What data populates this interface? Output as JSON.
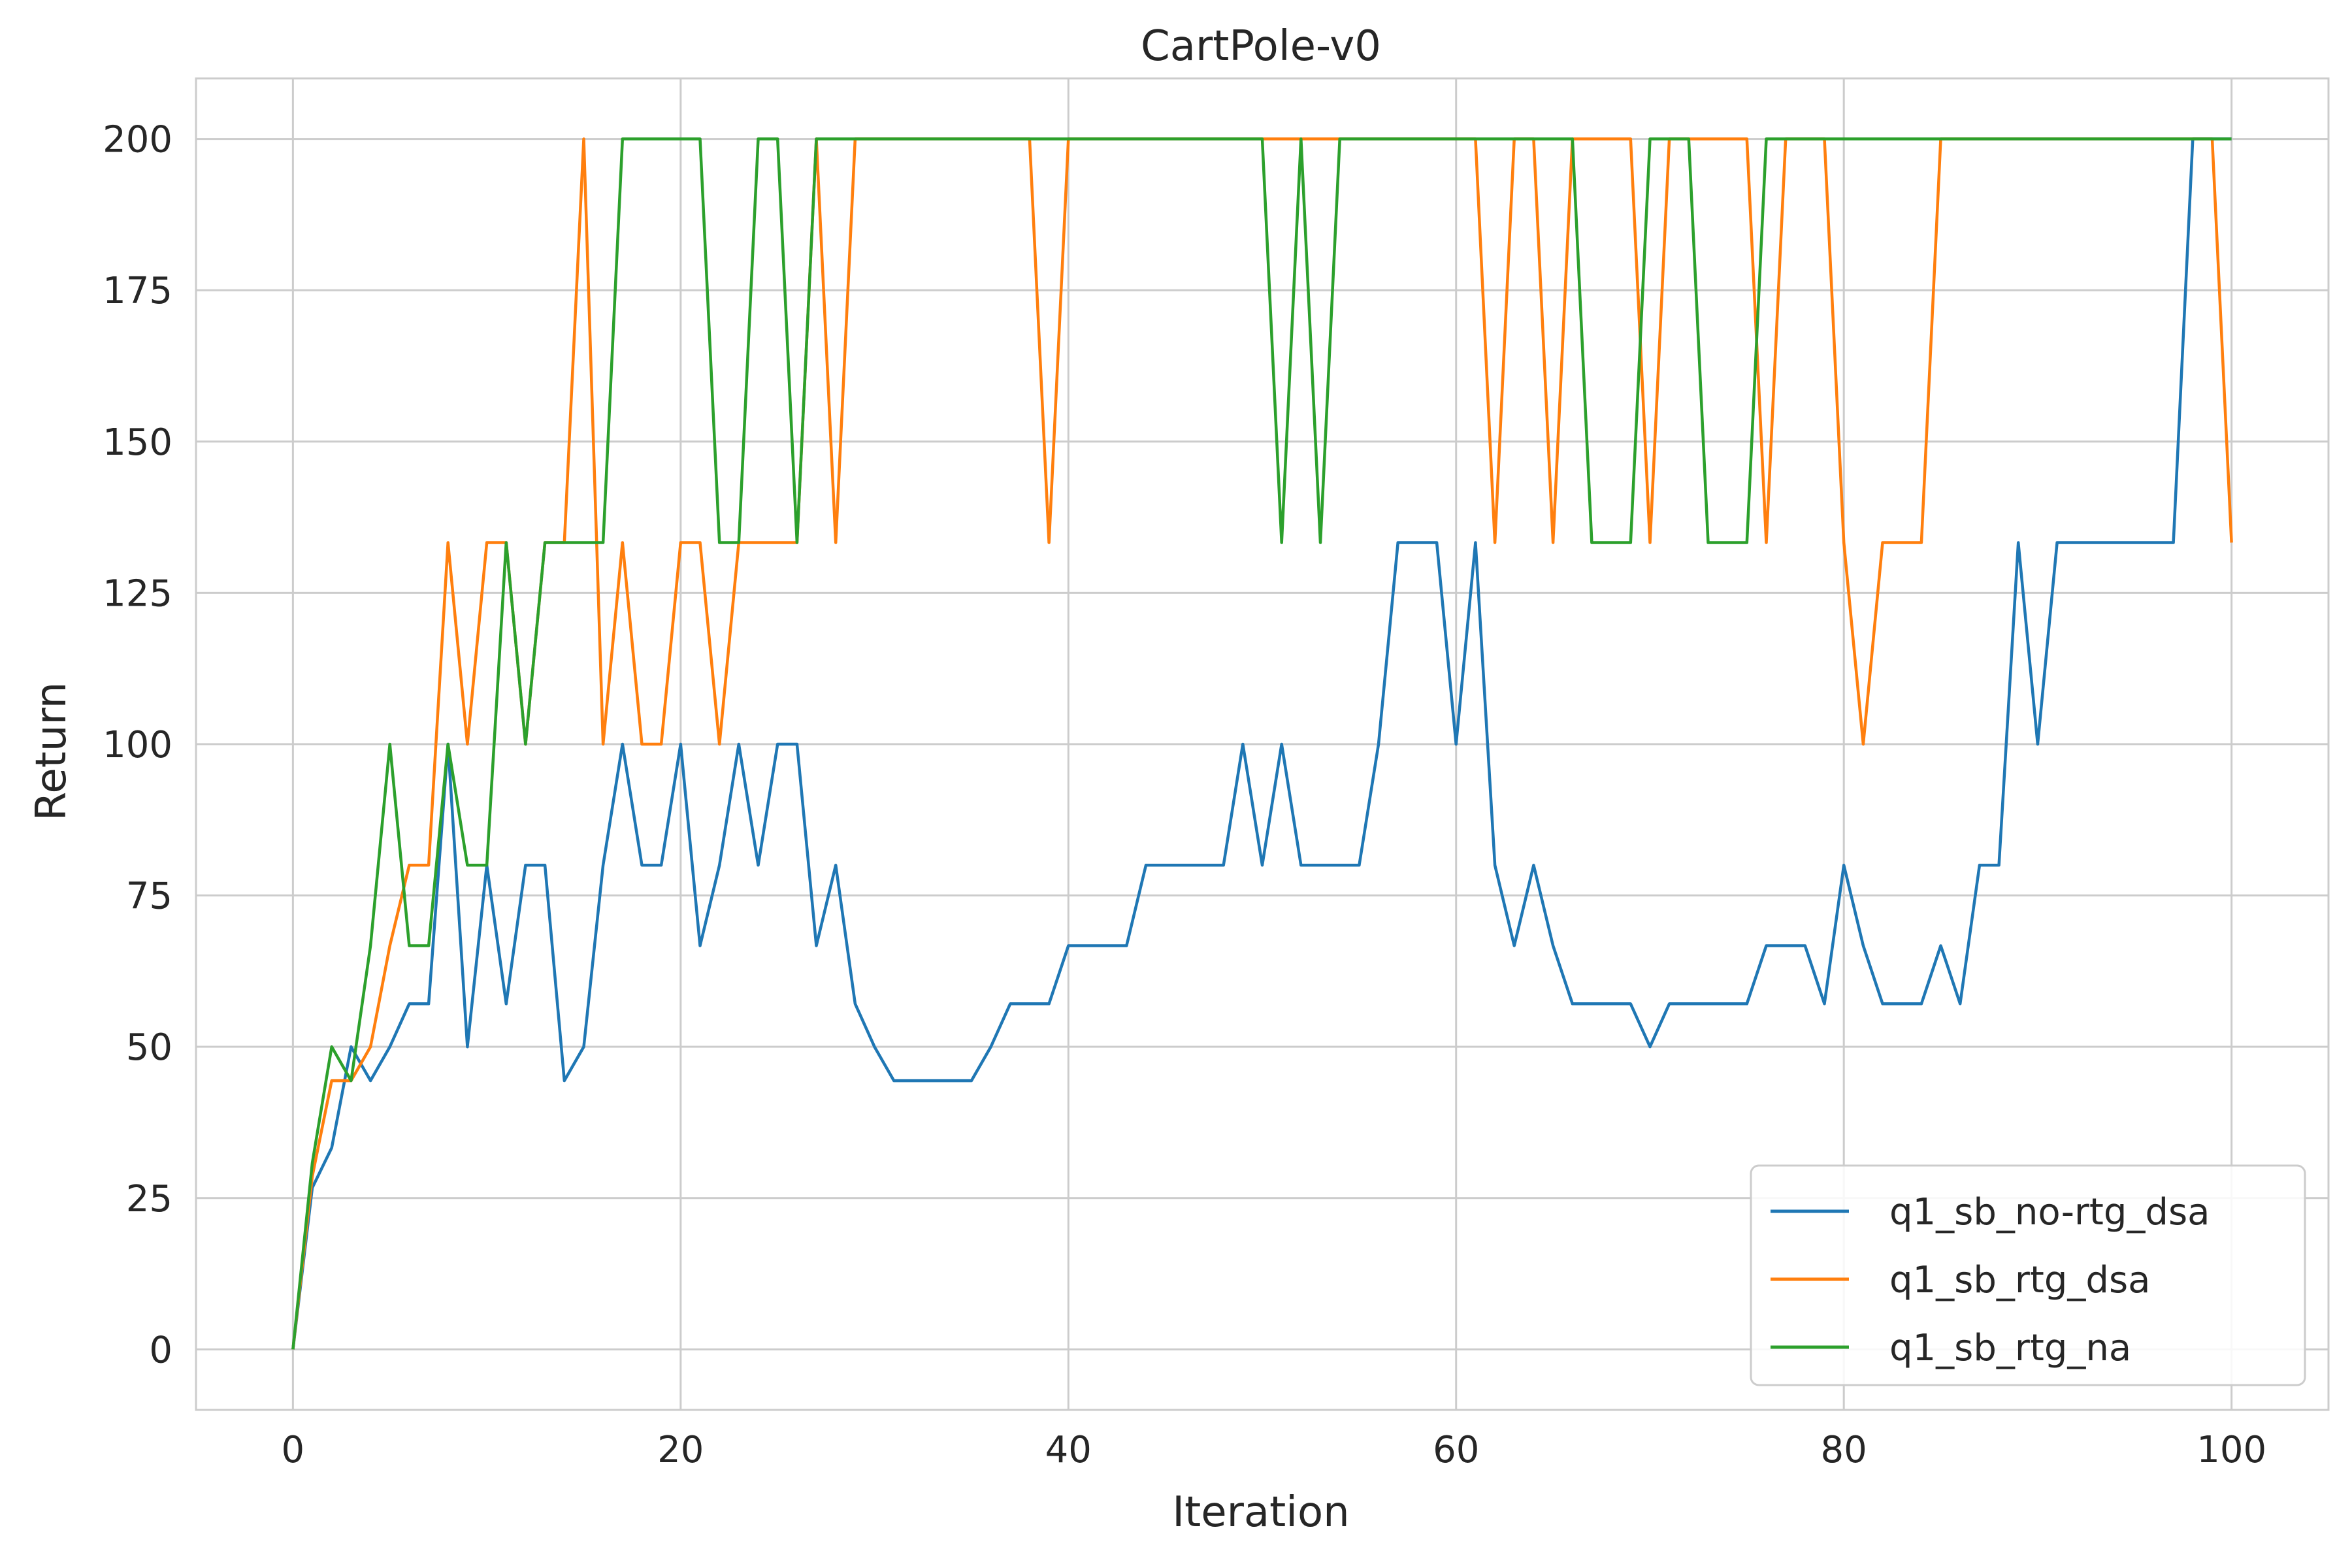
{
  "chart_data": {
    "type": "line",
    "title": "CartPole-v0",
    "xlabel": "Iteration",
    "ylabel": "Return",
    "xlim": [
      -5,
      105
    ],
    "ylim": [
      -10,
      210
    ],
    "xticks": [
      0,
      20,
      40,
      60,
      80,
      100
    ],
    "yticks": [
      0,
      25,
      50,
      75,
      100,
      125,
      150,
      175,
      200
    ],
    "grid": true,
    "legend_position": "lower-right",
    "series": [
      {
        "name": "q1_sb_no-rtg_dsa",
        "color": "#1f77b4",
        "x": [
          0,
          1,
          2,
          3,
          4,
          5,
          6,
          7,
          8,
          9,
          10,
          11,
          12,
          13,
          14,
          15,
          16,
          17,
          18,
          19,
          20,
          21,
          22,
          23,
          24,
          25,
          26,
          27,
          28,
          29,
          30,
          31,
          32,
          33,
          34,
          35,
          36,
          37,
          38,
          39,
          40,
          41,
          42,
          43,
          44,
          45,
          46,
          47,
          48,
          49,
          50,
          51,
          52,
          53,
          54,
          55,
          56,
          57,
          58,
          59,
          60,
          61,
          62,
          63,
          64,
          65,
          66,
          67,
          68,
          69,
          70,
          71,
          72,
          73,
          74,
          75,
          76,
          77,
          78,
          79,
          80,
          81,
          82,
          83,
          84,
          85,
          86,
          87,
          88,
          89,
          90,
          91,
          92,
          93,
          94,
          95,
          96,
          97,
          98,
          99,
          100
        ],
        "y": [
          0,
          26.7,
          33.3,
          50,
          44.4,
          50,
          57.1,
          57.1,
          100,
          50,
          80,
          57.1,
          80,
          80,
          44.4,
          50,
          80,
          100,
          80,
          80,
          100,
          66.7,
          80,
          100,
          80,
          100,
          100,
          66.7,
          80,
          57.1,
          50,
          44.4,
          44.4,
          44.4,
          44.4,
          44.4,
          50,
          57.1,
          57.1,
          57.1,
          66.7,
          66.7,
          66.7,
          66.7,
          80,
          80,
          80,
          80,
          80,
          100,
          80,
          100,
          80,
          80,
          80,
          80,
          100,
          133.3,
          133.3,
          133.3,
          100,
          133.3,
          80,
          66.7,
          80,
          66.7,
          57.1,
          57.1,
          57.1,
          57.1,
          50,
          57.1,
          57.1,
          57.1,
          57.1,
          57.1,
          66.7,
          66.7,
          66.7,
          57.1,
          80,
          66.7,
          57.1,
          57.1,
          57.1,
          66.7,
          57.1,
          80,
          80,
          133.3,
          100,
          133.3,
          133.3,
          133.3,
          133.3,
          133.3,
          133.3,
          133.3,
          200,
          200,
          200
        ]
      },
      {
        "name": "q1_sb_rtg_dsa",
        "color": "#ff7f0e",
        "x": [
          0,
          1,
          2,
          3,
          4,
          5,
          6,
          7,
          8,
          9,
          10,
          11,
          12,
          13,
          14,
          15,
          16,
          17,
          18,
          19,
          20,
          21,
          22,
          23,
          24,
          25,
          26,
          27,
          28,
          29,
          30,
          31,
          32,
          33,
          34,
          35,
          36,
          37,
          38,
          39,
          40,
          41,
          42,
          43,
          44,
          45,
          46,
          47,
          48,
          49,
          50,
          51,
          52,
          53,
          54,
          55,
          56,
          57,
          58,
          59,
          60,
          61,
          62,
          63,
          64,
          65,
          66,
          67,
          68,
          69,
          70,
          71,
          72,
          73,
          74,
          75,
          76,
          77,
          78,
          79,
          80,
          81,
          82,
          83,
          84,
          85,
          86,
          87,
          88,
          89,
          90,
          91,
          92,
          93,
          94,
          95,
          96,
          97,
          98,
          99,
          100
        ],
        "y": [
          0,
          28.6,
          44.4,
          44.4,
          50,
          66.7,
          80,
          80,
          133.3,
          100,
          133.3,
          133.3,
          100,
          133.3,
          133.3,
          200,
          100,
          133.3,
          100,
          100,
          133.3,
          133.3,
          100,
          133.3,
          133.3,
          133.3,
          133.3,
          200,
          133.3,
          200,
          200,
          200,
          200,
          200,
          200,
          200,
          200,
          200,
          200,
          133.3,
          200,
          200,
          200,
          200,
          200,
          200,
          200,
          200,
          200,
          200,
          200,
          200,
          200,
          200,
          200,
          200,
          200,
          200,
          200,
          200,
          200,
          200,
          133.3,
          200,
          200,
          133.3,
          200,
          200,
          200,
          200,
          133.3,
          200,
          200,
          200,
          200,
          200,
          133.3,
          200,
          200,
          200,
          133.3,
          100,
          133.3,
          133.3,
          133.3,
          200,
          200,
          200,
          200,
          200,
          200,
          200,
          200,
          200,
          200,
          200,
          200,
          200,
          200,
          200,
          133.3
        ]
      },
      {
        "name": "q1_sb_rtg_na",
        "color": "#2ca02c",
        "x": [
          0,
          1,
          2,
          3,
          4,
          5,
          6,
          7,
          8,
          9,
          10,
          11,
          12,
          13,
          14,
          15,
          16,
          17,
          18,
          19,
          20,
          21,
          22,
          23,
          24,
          25,
          26,
          27,
          28,
          29,
          30,
          31,
          32,
          33,
          34,
          35,
          36,
          37,
          38,
          39,
          40,
          41,
          42,
          43,
          44,
          45,
          46,
          47,
          48,
          49,
          50,
          51,
          52,
          53,
          54,
          55,
          56,
          57,
          58,
          59,
          60,
          61,
          62,
          63,
          64,
          65,
          66,
          67,
          68,
          69,
          70,
          71,
          72,
          73,
          74,
          75,
          76,
          77,
          78,
          79,
          80,
          81,
          82,
          83,
          84,
          85,
          86,
          87,
          88,
          89,
          90,
          91,
          92,
          93,
          94,
          95,
          96,
          97,
          98,
          99,
          100
        ],
        "y": [
          0,
          30.8,
          50,
          44.4,
          66.7,
          100,
          66.7,
          66.7,
          100,
          80,
          80,
          133.3,
          100,
          133.3,
          133.3,
          133.3,
          133.3,
          200,
          200,
          200,
          200,
          200,
          133.3,
          133.3,
          200,
          200,
          133.3,
          200,
          200,
          200,
          200,
          200,
          200,
          200,
          200,
          200,
          200,
          200,
          200,
          200,
          200,
          200,
          200,
          200,
          200,
          200,
          200,
          200,
          200,
          200,
          200,
          133.3,
          200,
          133.3,
          200,
          200,
          200,
          200,
          200,
          200,
          200,
          200,
          200,
          200,
          200,
          200,
          200,
          133.3,
          133.3,
          133.3,
          200,
          200,
          200,
          133.3,
          133.3,
          133.3,
          200,
          200,
          200,
          200,
          200,
          200,
          200,
          200,
          200,
          200,
          200,
          200,
          200,
          200,
          200,
          200,
          200,
          200,
          200,
          200,
          200,
          200,
          200,
          200,
          200
        ]
      }
    ]
  }
}
